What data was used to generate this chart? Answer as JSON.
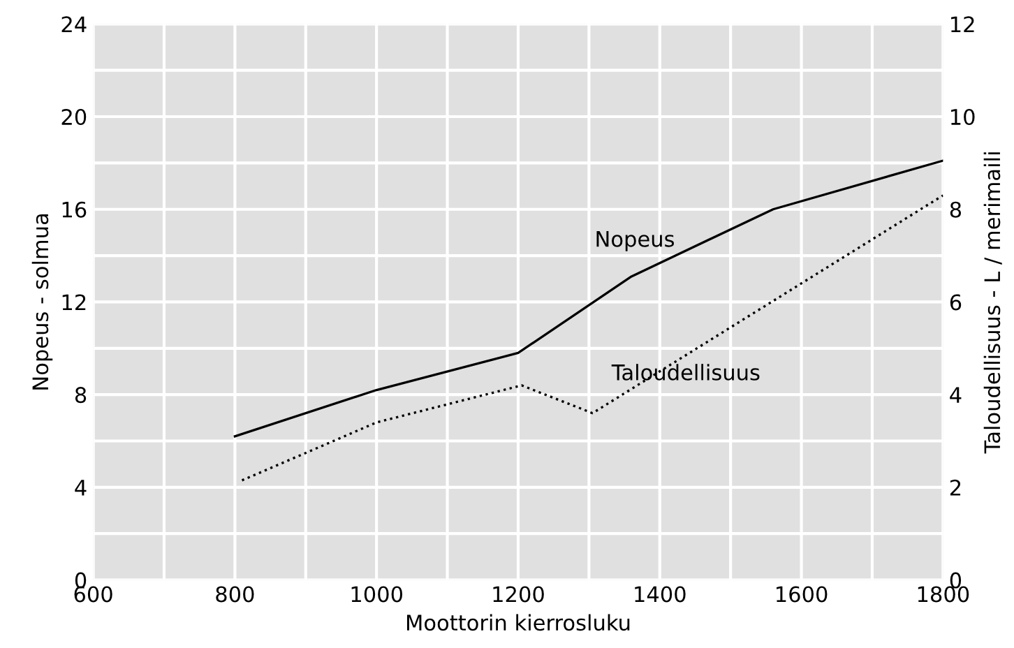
{
  "chart_data": {
    "type": "line",
    "xlabel": "Moottorin kierrosluku",
    "ylabel": "Nopeus - solmua",
    "y2label": "Taloudellisuus - L / merimaili",
    "xlim": [
      600,
      1800
    ],
    "xticks": [
      600,
      800,
      1000,
      1200,
      1400,
      1600,
      1800
    ],
    "ylim": [
      0,
      24
    ],
    "yticks": [
      0,
      4,
      8,
      12,
      16,
      20,
      24
    ],
    "y2lim": [
      0,
      12
    ],
    "y2ticks": [
      0,
      2,
      4,
      6,
      8,
      10,
      12
    ],
    "grid": true,
    "legend": false,
    "series": [
      {
        "name": "Nopeus",
        "color": "#000000",
        "line_style": "solid",
        "x": [
          800,
          1000,
          1200,
          1360,
          1560,
          1800
        ],
        "values": [
          6.2,
          8.2,
          9.8,
          13.1,
          16.0,
          18.1
        ]
      },
      {
        "name": "Taloudellisuus",
        "color": "#000000",
        "line_style": "dotted",
        "axis": "y2",
        "x": [
          810,
          1000,
          1205,
          1305,
          1800
        ],
        "values": [
          2.15,
          3.4,
          4.2,
          3.6,
          8.3
        ]
      }
    ]
  }
}
